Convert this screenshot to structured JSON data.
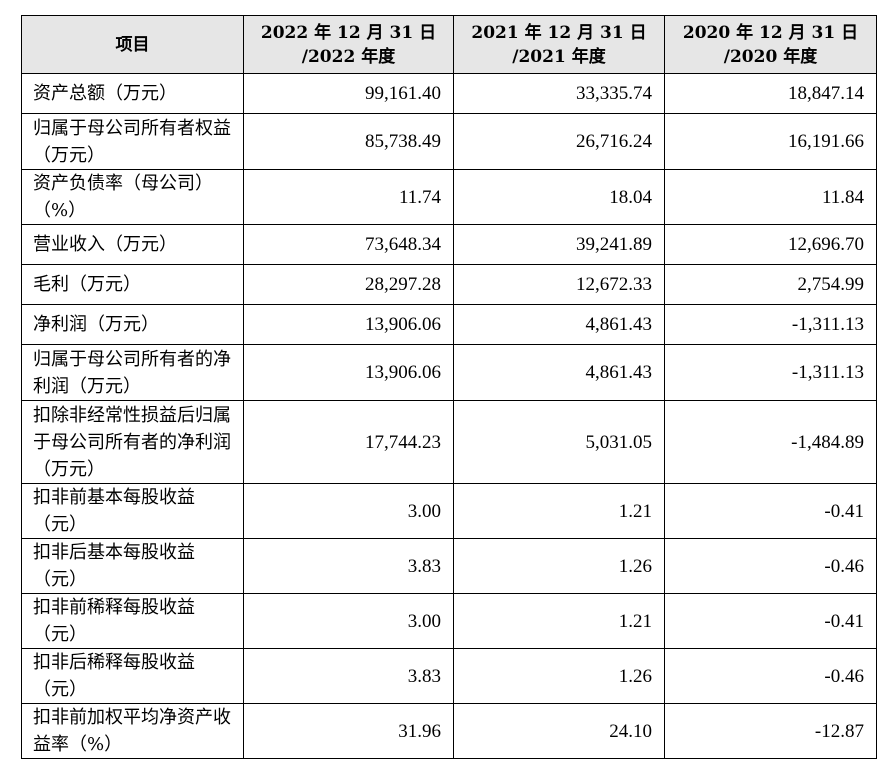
{
  "table": {
    "header": {
      "item": "项目",
      "years": [
        {
          "line1": "2022 年 12 月 31 日",
          "line2": "/2022 年度"
        },
        {
          "line1": "2021 年 12 月 31 日",
          "line2": "/2021 年度"
        },
        {
          "line1": "2020 年 12 月 31 日",
          "line2": "/2020 年度"
        }
      ]
    },
    "rows": [
      {
        "label": "资产总额（万元）",
        "values": [
          "99,161.40",
          "33,335.74",
          "18,847.14"
        ]
      },
      {
        "label": "归属于母公司所有者权益（万元）",
        "values": [
          "85,738.49",
          "26,716.24",
          "16,191.66"
        ]
      },
      {
        "label": "资产负债率（母公司）（%）",
        "values": [
          "11.74",
          "18.04",
          "11.84"
        ]
      },
      {
        "label": "营业收入（万元）",
        "values": [
          "73,648.34",
          "39,241.89",
          "12,696.70"
        ]
      },
      {
        "label": "毛利（万元）",
        "values": [
          "28,297.28",
          "12,672.33",
          "2,754.99"
        ]
      },
      {
        "label": "净利润（万元）",
        "values": [
          "13,906.06",
          "4,861.43",
          "-1,311.13"
        ]
      },
      {
        "label": "归属于母公司所有者的净利润（万元）",
        "values": [
          "13,906.06",
          "4,861.43",
          "-1,311.13"
        ]
      },
      {
        "label": "扣除非经常性损益后归属于母公司所有者的净利润（万元）",
        "values": [
          "17,744.23",
          "5,031.05",
          "-1,484.89"
        ]
      },
      {
        "label": "扣非前基本每股收益（元）",
        "values": [
          "3.00",
          "1.21",
          "-0.41"
        ]
      },
      {
        "label": "扣非后基本每股收益（元）",
        "values": [
          "3.83",
          "1.26",
          "-0.46"
        ]
      },
      {
        "label": "扣非前稀释每股收益（元）",
        "values": [
          "3.00",
          "1.21",
          "-0.41"
        ]
      },
      {
        "label": "扣非后稀释每股收益（元）",
        "values": [
          "3.83",
          "1.26",
          "-0.46"
        ]
      },
      {
        "label": "扣非前加权平均净资产收益率（%）",
        "values": [
          "31.96",
          "24.10",
          "-12.87"
        ]
      }
    ]
  }
}
